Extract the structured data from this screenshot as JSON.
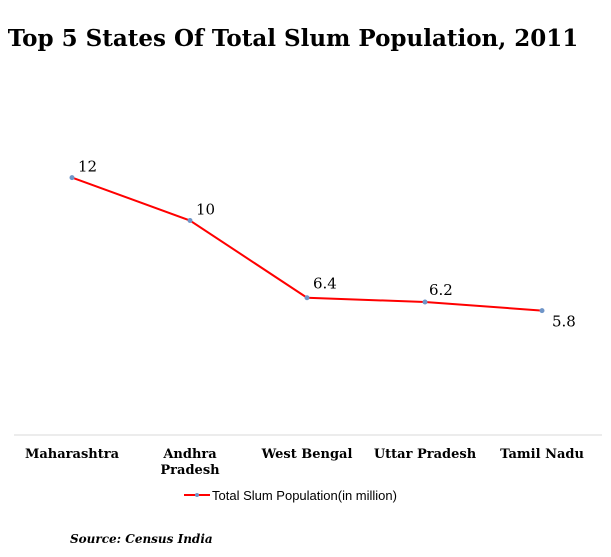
{
  "chart_data": {
    "type": "line",
    "title": "Top 5 States Of Total Slum Population, 2011",
    "categories": [
      [
        "Maharashtra"
      ],
      [
        "Andhra",
        "Pradesh"
      ],
      [
        "West Bengal"
      ],
      [
        "Uttar Pradesh"
      ],
      [
        "Tamil Nadu"
      ]
    ],
    "series": [
      {
        "name": "Total Slum Population(in million)",
        "values": [
          12,
          10,
          6.4,
          6.2,
          5.8
        ],
        "data_labels": [
          "12",
          "10",
          "6.4",
          "6.2",
          "5.8"
        ],
        "color": "#ff0000",
        "marker_color": "#6f95c8"
      }
    ],
    "ylim": [
      0,
      17.25
    ],
    "grid": false,
    "legend_position": "bottom",
    "axis_color": "#d9d9d9",
    "source": "Source: Census India"
  }
}
